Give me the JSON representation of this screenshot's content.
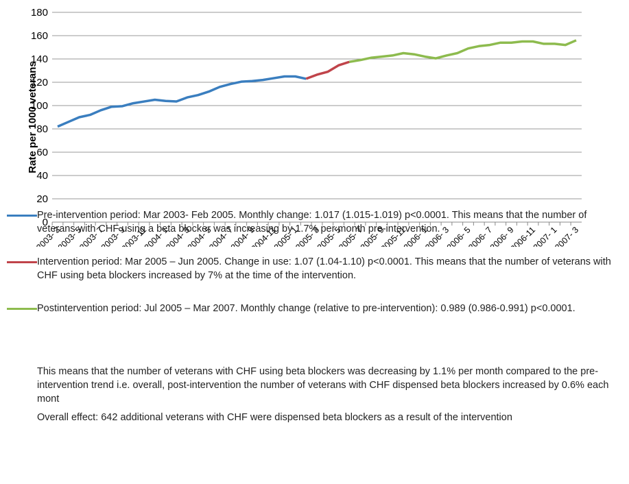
{
  "chart_data": {
    "type": "line",
    "y_label": "Rate per 1000 veterans",
    "categories": [
      "2003- 3",
      null,
      "2003- 5",
      null,
      "2003- 7",
      null,
      "2003- 9",
      null,
      "2003-11",
      null,
      "2004- 1",
      null,
      "2004- 3",
      null,
      "2004- 5",
      null,
      "2004- 7",
      null,
      "2004- 9",
      null,
      "2004-11",
      null,
      "2005- 1",
      null,
      "2005- 3",
      null,
      "2005- 5",
      null,
      "2005- 7",
      null,
      "2005- 9",
      null,
      "2005-11",
      null,
      "2006- 1",
      null,
      "2006- 3",
      null,
      "2006- 5",
      null,
      "2006- 7",
      null,
      "2006- 9",
      null,
      "2006-11",
      null,
      "2007- 1",
      null,
      "2007- 3"
    ],
    "series": [
      {
        "name": "Pre-intervention period: Mar 2003- Feb 2005. Monthly change: 1.017 (1.015-1.019) p<0.0001. This means that the number of veterans with CHF using a beta blocker was increasing by 1.7% per month pre-intervention.",
        "color": "#3a7ebf",
        "values": [
          82,
          86,
          90,
          92,
          96,
          99,
          99.5,
          102,
          103.5,
          105,
          104,
          103.5,
          107,
          109,
          112,
          116,
          118.5,
          120.5,
          121,
          122,
          123.5,
          125,
          125,
          123,
          null,
          null,
          null,
          null,
          null,
          null,
          null,
          null,
          null,
          null,
          null,
          null,
          null,
          null,
          null,
          null,
          null,
          null,
          null,
          null,
          null,
          null,
          null,
          null,
          null
        ]
      },
      {
        "name": "Intervention period: Mar 2005 – Jun 2005. Change in use: 1.07 (1.04-1.10) p<0.0001. This means that the number of veterans with CHF using beta blockers increased by 7% at the time of the intervention.",
        "color": "#c0444a",
        "values": [
          null,
          null,
          null,
          null,
          null,
          null,
          null,
          null,
          null,
          null,
          null,
          null,
          null,
          null,
          null,
          null,
          null,
          null,
          null,
          null,
          null,
          null,
          null,
          123,
          126.5,
          129,
          134.5,
          137.5,
          null,
          null,
          null,
          null,
          null,
          null,
          null,
          null,
          null,
          null,
          null,
          null,
          null,
          null,
          null,
          null,
          null,
          null,
          null,
          null,
          null
        ]
      },
      {
        "name": "Postintervention period: Jul 2005 – Mar 2007. Monthly change (relative to pre-intervention): 0.989 (0.986-0.991) p<0.0001.",
        "color": "#8dbb4e",
        "values": [
          null,
          null,
          null,
          null,
          null,
          null,
          null,
          null,
          null,
          null,
          null,
          null,
          null,
          null,
          null,
          null,
          null,
          null,
          null,
          null,
          null,
          null,
          null,
          null,
          null,
          null,
          null,
          137.5,
          139,
          141,
          142,
          143,
          145,
          144,
          142,
          140.5,
          143,
          145,
          149,
          151,
          152,
          154,
          154,
          155,
          155,
          153,
          153,
          152,
          156
        ]
      }
    ],
    "ylim": [
      0,
      180
    ],
    "yticks": [
      0,
      20,
      40,
      60,
      80,
      100,
      120,
      140,
      160,
      180
    ],
    "grid": true,
    "notes": [
      "This means that the number of veterans with CHF using beta blockers was decreasing by 1.1% per month compared to the pre-intervention trend i.e. overall, post-intervention the number of veterans with CHF dispensed beta blockers increased by 0.6% each mont",
      "Overall effect: 642 additional veterans with CHF were dispensed beta blockers as a result of the intervention"
    ]
  }
}
